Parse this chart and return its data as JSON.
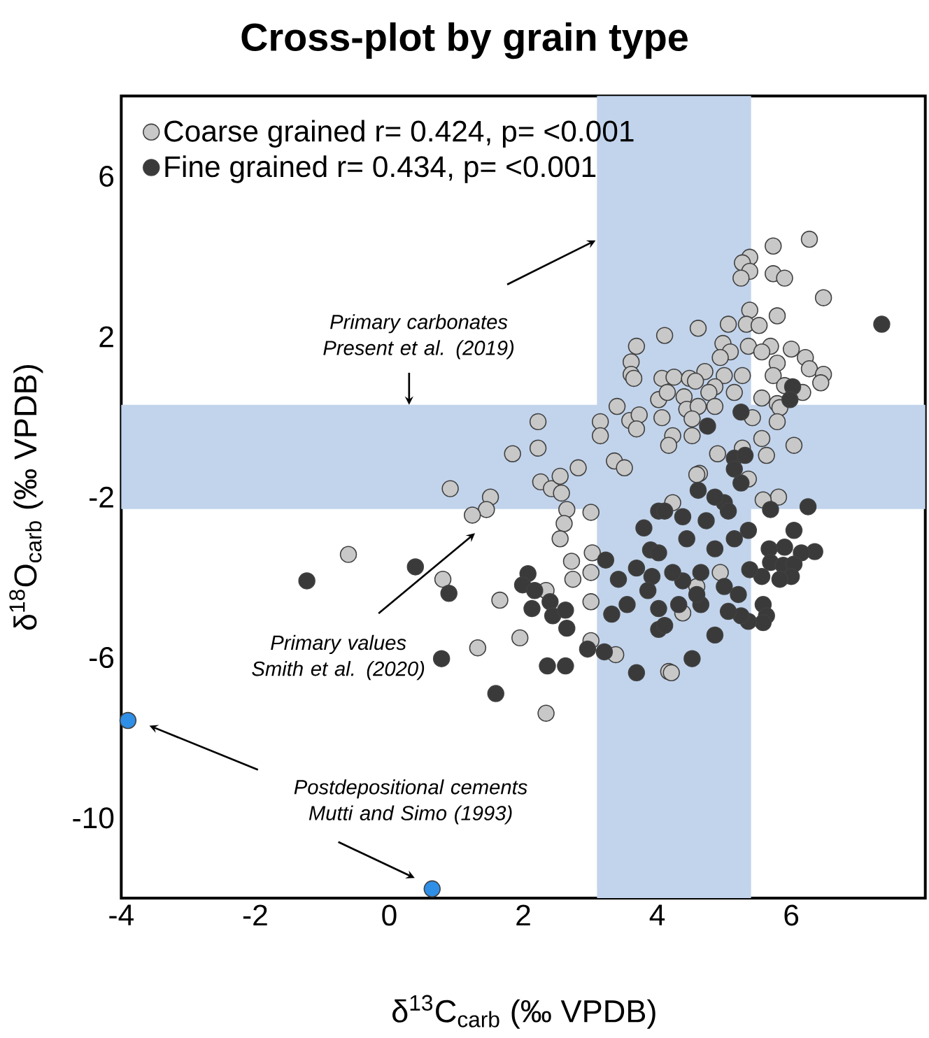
{
  "chart_data": {
    "type": "scatter",
    "title": "Cross-plot by grain type",
    "xlabel": "δ$^{13}$C$_{carb}$ (‰ VPDB)",
    "ylabel": "δ$^{18}$O$_{carb}$ (‰ VPDB)",
    "xlim": [
      -4,
      8
    ],
    "ylim": [
      -12,
      8
    ],
    "xticks": [
      -4,
      -2,
      0,
      2,
      4,
      6
    ],
    "yticks": [
      -10,
      -6,
      -2,
      2,
      6
    ],
    "legend": "top left",
    "marker": "circle",
    "series": [
      {
        "name": "Coarse grained r= 0.424, p= <0.001",
        "color": "#c8c8c8",
        "x": [
          3.69,
          3.61,
          3.61,
          3.65,
          4.11,
          4.07,
          4.02,
          2.22,
          3.15,
          3.15,
          3.4,
          3.59,
          3.73,
          3.69,
          2.22,
          1.84,
          2.82,
          3.36,
          3.51,
          4.07,
          5.73,
          6.27,
          5.38,
          5.27,
          5.38,
          5.25,
          5.73,
          5.9,
          6.48,
          5.38,
          5.79,
          4.61,
          5.06,
          5.33,
          5.52,
          4.98,
          5.36,
          5.09,
          4.94,
          5.69,
          5.56,
          6.0,
          6.21,
          6.27,
          5.79,
          5.73,
          6.48,
          6.44,
          5.9,
          5.27,
          5.0,
          4.71,
          4.25,
          4.48,
          4.57,
          4.86,
          4.15,
          4.4,
          4.77,
          5.15,
          5.56,
          6.17,
          4.44,
          4.61,
          4.86,
          5.42,
          5.79,
          5.83,
          5.79,
          4.52,
          4.23,
          4.17,
          4.52,
          5.56,
          6.04,
          4.9,
          5.63,
          4.63,
          5.27,
          0.91,
          1.51,
          1.45,
          1.24,
          2.26,
          2.42,
          2.55,
          2.57,
          2.65,
          2.61,
          3.01,
          2.55,
          2.72,
          2.74,
          3.01,
          3.03,
          0.8,
          1.65,
          2.34,
          1.95,
          1.32,
          3.01,
          3.01,
          2.34,
          3.38,
          4.17,
          -0.61,
          4.21,
          4.59,
          5.36,
          5.81,
          5.58,
          4.23,
          4.38,
          4.59,
          4.94
        ],
        "values": [
          1.76,
          1.37,
          1.06,
          0.96,
          2.03,
          0.96,
          0.43,
          -0.12,
          -0.12,
          -0.47,
          0.26,
          -0.09,
          0.05,
          -0.3,
          -0.78,
          -0.92,
          -1.27,
          -1.1,
          -1.27,
          -0.02,
          4.26,
          4.43,
          3.98,
          3.84,
          3.63,
          3.46,
          3.57,
          3.46,
          2.97,
          2.66,
          2.52,
          2.21,
          2.31,
          2.31,
          2.28,
          1.83,
          1.76,
          1.62,
          1.48,
          1.76,
          1.62,
          1.69,
          1.48,
          1.2,
          1.34,
          1.03,
          1.06,
          0.85,
          0.78,
          1.03,
          1.03,
          1.13,
          0.99,
          0.96,
          0.89,
          0.75,
          0.61,
          0.5,
          0.61,
          0.61,
          0.47,
          0.61,
          0.19,
          0.26,
          0.26,
          -0.02,
          0.33,
          0.23,
          -0.12,
          -0.05,
          -0.47,
          -0.71,
          -0.47,
          -0.54,
          -0.71,
          -0.92,
          -0.96,
          -1.41,
          -0.78,
          -1.79,
          -2.0,
          -2.31,
          -2.45,
          -1.62,
          -1.79,
          -1.48,
          -1.9,
          -2.31,
          -2.66,
          -2.38,
          -3.04,
          -3.6,
          -4.05,
          -3.88,
          -3.39,
          -4.05,
          -4.57,
          -4.33,
          -5.51,
          -5.76,
          -5.58,
          -4.61,
          -7.39,
          -5.93,
          -6.35,
          -3.43,
          -6.38,
          -1.44,
          -1.55,
          -2.0,
          -2.07,
          -2.14,
          -4.89,
          -4.23,
          -3.88
        ]
      },
      {
        "name": "Fine grained r= 0.434, p= <0.001",
        "color": "#3a3a3a",
        "x": [
          7.35,
          6.02,
          5.98,
          5.25,
          4.75,
          5.15,
          5.31,
          0.39,
          0.89,
          0.78,
          1.59,
          2.07,
          1.99,
          2.17,
          2.13,
          2.4,
          2.44,
          2.63,
          2.65,
          2.36,
          2.63,
          2.96,
          3.21,
          3.69,
          3.23,
          3.42,
          3.69,
          3.9,
          4.02,
          3.8,
          3.92,
          3.32,
          3.55,
          4.02,
          3.86,
          5.15,
          4.61,
          5.25,
          5.0,
          5.69,
          6.25,
          6.04,
          6.35,
          6.15,
          5.9,
          5.67,
          5.69,
          5.88,
          6.04,
          6.0,
          5.83,
          5.56,
          5.38,
          5.58,
          5.63,
          5.58,
          5.36,
          5.25,
          5.06,
          4.86,
          4.52,
          4.11,
          4.65,
          4.38,
          4.23,
          4.65,
          4.86,
          5.15,
          5.36,
          4.73,
          4.38,
          4.11,
          5.06,
          4.86,
          4.44,
          4.02,
          5.0,
          5.21,
          4.59,
          4.32,
          4.02,
          -1.23
        ],
        "values": [
          2.31,
          0.75,
          0.43,
          0.12,
          -0.23,
          -1.03,
          -0.96,
          -3.74,
          -4.4,
          -6.03,
          -6.9,
          -3.91,
          -4.19,
          -4.33,
          -4.78,
          -4.61,
          -4.96,
          -4.82,
          -5.27,
          -6.21,
          -6.21,
          -5.79,
          -5.86,
          -6.38,
          -3.57,
          -4.05,
          -3.77,
          -3.32,
          -2.35,
          -2.77,
          -3.98,
          -4.92,
          -4.68,
          -5.3,
          -4.33,
          -1.3,
          -1.83,
          -1.65,
          -2.14,
          -2.31,
          -2.24,
          -2.83,
          -3.36,
          -3.39,
          -3.25,
          -3.29,
          -3.63,
          -3.7,
          -3.67,
          -3.98,
          -4.05,
          -3.98,
          -3.81,
          -4.68,
          -4.96,
          -5.13,
          -5.1,
          -4.96,
          -4.85,
          -5.44,
          -6.03,
          -5.2,
          -4.68,
          -4.09,
          -3.88,
          -3.88,
          -3.29,
          -3.04,
          -2.83,
          -2.59,
          -2.49,
          -2.35,
          -2.35,
          -2.0,
          -3.04,
          -3.39,
          -4.23,
          -4.43,
          -4.43,
          -4.68,
          -4.78,
          -4.09
        ]
      },
      {
        "color": "#2f8ee6",
        "x": [
          -3.9,
          0.64
        ],
        "values": [
          -7.57,
          -11.77
        ]
      }
    ],
    "bands": [
      {
        "axis": "x",
        "from": 3.1,
        "to": 5.4,
        "color": "#c2d4ec"
      },
      {
        "axis": "y",
        "from": -2.3,
        "to": 0.3,
        "color": "#c2d4ec"
      }
    ],
    "annotations": [
      "Primary carbonates Present et al. (2019)",
      "Primary values Smith et al. (2020)",
      "Postdepositional cements Mutti and Simo (1993)"
    ]
  }
}
